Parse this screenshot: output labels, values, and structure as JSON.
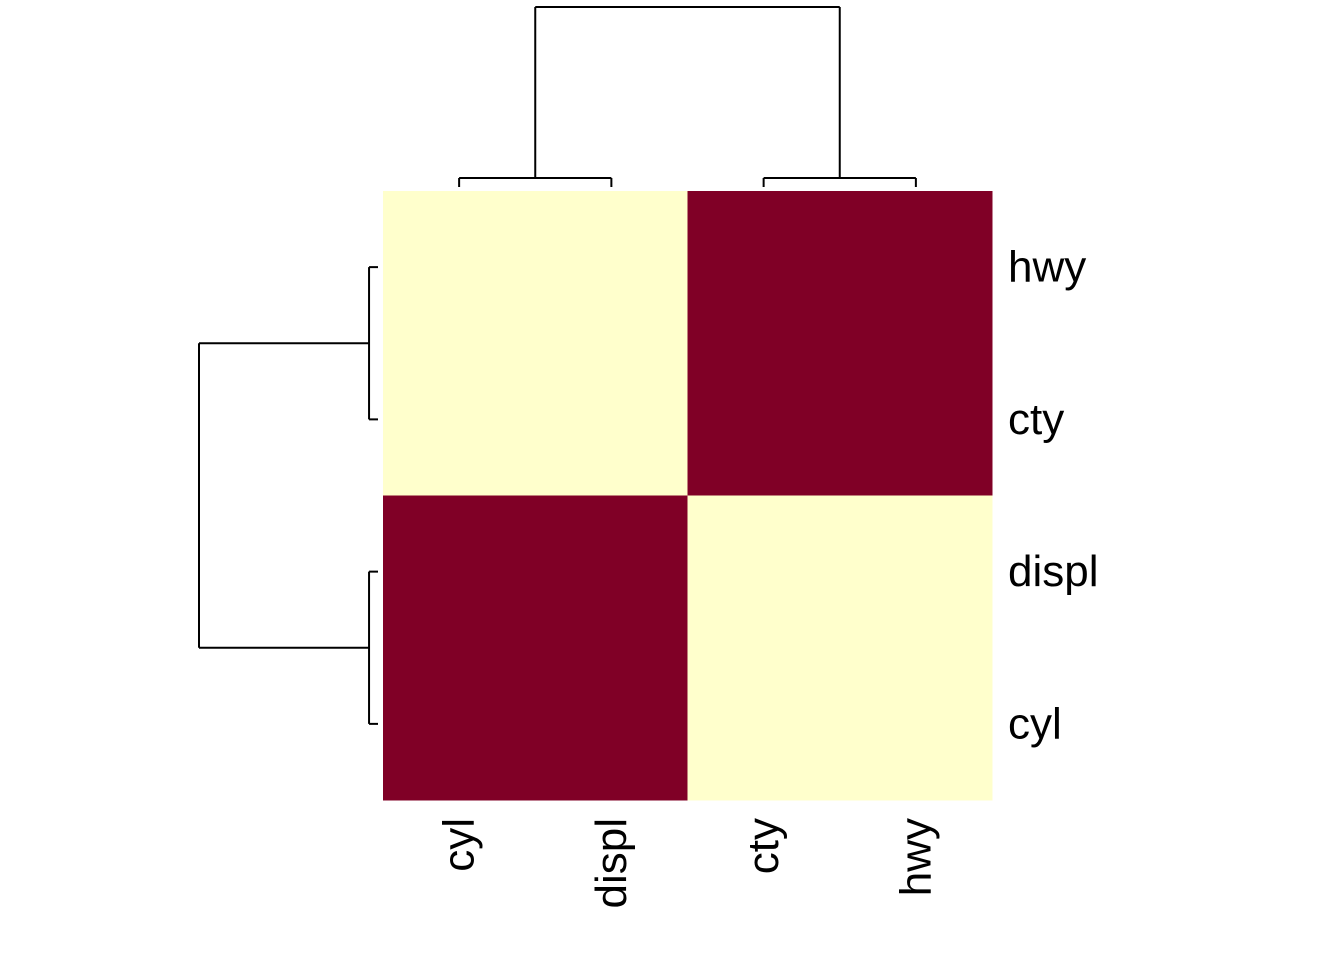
{
  "chart_data": {
    "type": "heatmap",
    "title": "",
    "xlabel": "",
    "ylabel": "",
    "columns": [
      "cyl",
      "displ",
      "cty",
      "hwy"
    ],
    "rows": [
      "hwy",
      "cty",
      "displ",
      "cyl"
    ],
    "values": [
      [
        0,
        0,
        1,
        1
      ],
      [
        0,
        0,
        1,
        1
      ],
      [
        1,
        1,
        0,
        0
      ],
      [
        1,
        1,
        0,
        0
      ]
    ],
    "color_scale": {
      "low": "#ffffcc",
      "high": "#800026"
    },
    "column_dendrogram": {
      "pairs": [
        [
          "cyl",
          "displ"
        ],
        [
          "cty",
          "hwy"
        ]
      ],
      "pair_height": 0.05,
      "root_height": 1.0
    },
    "row_dendrogram": {
      "pairs": [
        [
          "hwy",
          "cty"
        ],
        [
          "displ",
          "cyl"
        ]
      ],
      "pair_height": 0.05,
      "root_height": 1.0
    },
    "legend": "none"
  }
}
